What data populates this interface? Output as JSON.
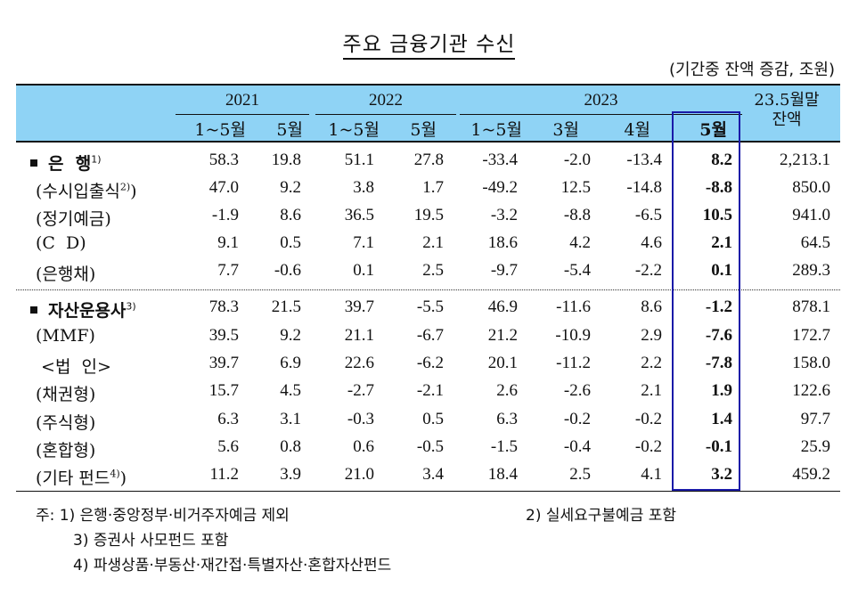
{
  "title": "주요 금융기관 수신",
  "unit": "(기간중 잔액 증감, 조원)",
  "header": {
    "years": [
      "2021",
      "2022",
      "2023"
    ],
    "subcolumns": [
      "1~5월",
      "5월",
      "1~5월",
      "5월",
      "1~5월",
      "3월",
      "4월",
      "5월"
    ],
    "balance_line1": "23.5월말",
    "balance_line2": "잔액"
  },
  "rows": [
    {
      "label": "은  행",
      "sup": "1)",
      "bold": true,
      "bullet": true,
      "values": [
        "58.3",
        "19.8",
        "51.1",
        "27.8",
        "-33.4",
        "-2.0",
        "-13.4",
        "8.2",
        "2,213.1"
      ]
    },
    {
      "label": "(수시입출식",
      "sup": "2)",
      "suffix": ")",
      "values": [
        "47.0",
        "9.2",
        "3.8",
        "1.7",
        "-49.2",
        "12.5",
        "-14.8",
        "-8.8",
        "850.0"
      ]
    },
    {
      "label": "(정기예금)",
      "values": [
        "-1.9",
        "8.6",
        "36.5",
        "19.5",
        "-3.2",
        "-8.8",
        "-6.5",
        "10.5",
        "941.0"
      ]
    },
    {
      "label": "(C  D)",
      "values": [
        "9.1",
        "0.5",
        "7.1",
        "2.1",
        "18.6",
        "4.2",
        "4.6",
        "2.1",
        "64.5"
      ]
    },
    {
      "label": "(은행채)",
      "values": [
        "7.7",
        "-0.6",
        "0.1",
        "2.5",
        "-9.7",
        "-5.4",
        "-2.2",
        "0.1",
        "289.3"
      ]
    },
    {
      "label": "자산운용사",
      "sup": "3)",
      "bold": true,
      "bullet": true,
      "values": [
        "78.3",
        "21.5",
        "39.7",
        "-5.5",
        "46.9",
        "-11.6",
        "8.6",
        "-1.2",
        "878.1"
      ]
    },
    {
      "label": "(MMF)",
      "values": [
        "39.5",
        "9.2",
        "21.1",
        "-6.7",
        "21.2",
        "-10.9",
        "2.9",
        "-7.6",
        "172.7"
      ]
    },
    {
      "label": " <법  인>",
      "values": [
        "39.7",
        "6.9",
        "22.6",
        "-6.2",
        "20.1",
        "-11.2",
        "2.2",
        "-7.8",
        "158.0"
      ]
    },
    {
      "label": "(채권형)",
      "values": [
        "15.7",
        "4.5",
        "-2.7",
        "-2.1",
        "2.6",
        "-2.6",
        "2.1",
        "1.9",
        "122.6"
      ]
    },
    {
      "label": "(주식형)",
      "values": [
        "6.3",
        "3.1",
        "-0.3",
        "0.5",
        "6.3",
        "-0.2",
        "-0.2",
        "1.4",
        "97.7"
      ]
    },
    {
      "label": "(혼합형)",
      "values": [
        "5.6",
        "0.8",
        "0.6",
        "-0.5",
        "-1.5",
        "-0.4",
        "-0.2",
        "-0.1",
        "25.9"
      ]
    },
    {
      "label": "(기타 펀드",
      "sup": "4)",
      "suffix": ")",
      "values": [
        "11.2",
        "3.9",
        "21.0",
        "3.4",
        "18.4",
        "2.5",
        "4.1",
        "3.2",
        "459.2"
      ]
    }
  ],
  "notes": {
    "n1": "주: 1) 은행·중앙정부·비거주자예금 제외",
    "n2": "2) 실세요구불예금 포함",
    "n3": "3) 증권사 사모펀드 포함",
    "n4": "4) 파생상품·부동산·재간접·특별자산·혼합자산펀드"
  },
  "colors": {
    "header_bg": "#8fd3f5",
    "highlight_border": "#1a1aa8"
  }
}
